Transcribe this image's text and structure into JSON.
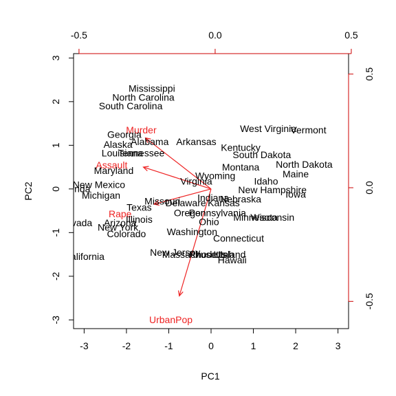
{
  "chart_data": {
    "type": "scatter",
    "subtype": "biplot",
    "xlabel": "PC1",
    "ylabel": "PC2",
    "xlim": [
      -3.25,
      3.25
    ],
    "ylim": [
      -3.2,
      3.1
    ],
    "x_ticks": [
      -3,
      -2,
      -1,
      0,
      1,
      2,
      3
    ],
    "y_ticks": [
      -3,
      -2,
      -1,
      0,
      1,
      2,
      3
    ],
    "top_axis": {
      "lim": [
        -0.52,
        0.49
      ],
      "ticks": [
        -0.5,
        0.0,
        0.5
      ],
      "tick_labels": [
        "-0.5",
        "0.0",
        "0.5"
      ],
      "color": "#cc0000"
    },
    "right_axis": {
      "lim": [
        -0.62,
        0.59
      ],
      "ticks": [
        -0.5,
        0.0,
        0.5
      ],
      "tick_labels": [
        "-0.5",
        "0.0",
        "0.5"
      ],
      "color": "#cc0000"
    },
    "arrow_color": "#ee2222",
    "label_color": "#000000",
    "observations": [
      {
        "name": "Mississippi",
        "x": -1.4,
        "y": 2.3
      },
      {
        "name": "North Carolina",
        "x": -1.6,
        "y": 2.1
      },
      {
        "name": "South Carolina",
        "x": -1.9,
        "y": 1.9
      },
      {
        "name": "Georgia",
        "x": -2.05,
        "y": 1.25
      },
      {
        "name": "Alabama",
        "x": -1.45,
        "y": 1.08
      },
      {
        "name": "Arkansas",
        "x": -0.35,
        "y": 1.08
      },
      {
        "name": "Alaska",
        "x": -2.2,
        "y": 1.02
      },
      {
        "name": "Louisiana",
        "x": -2.1,
        "y": 0.82
      },
      {
        "name": "Tennessee",
        "x": -1.65,
        "y": 0.82
      },
      {
        "name": "Kentucky",
        "x": 0.7,
        "y": 0.95
      },
      {
        "name": "West Virginia",
        "x": 1.35,
        "y": 1.38
      },
      {
        "name": "Vermont",
        "x": 2.3,
        "y": 1.35
      },
      {
        "name": "South Dakota",
        "x": 1.2,
        "y": 0.78
      },
      {
        "name": "Maryland",
        "x": -2.3,
        "y": 0.42
      },
      {
        "name": "Montana",
        "x": 0.7,
        "y": 0.5
      },
      {
        "name": "North Dakota",
        "x": 2.2,
        "y": 0.56
      },
      {
        "name": "Maine",
        "x": 2.0,
        "y": 0.34
      },
      {
        "name": "Wyoming",
        "x": 0.1,
        "y": 0.3
      },
      {
        "name": "Virginia",
        "x": -0.35,
        "y": 0.18
      },
      {
        "name": "Idaho",
        "x": 1.3,
        "y": 0.18
      },
      {
        "name": "Florida",
        "x": -3.2,
        "y": 0.0
      },
      {
        "name": "New Mexico",
        "x": -2.65,
        "y": 0.1
      },
      {
        "name": "New Hampshire",
        "x": 1.45,
        "y": -0.02
      },
      {
        "name": "Iowa",
        "x": 2.0,
        "y": -0.12
      },
      {
        "name": "Michigan",
        "x": -2.6,
        "y": -0.15
      },
      {
        "name": "Indiana",
        "x": 0.05,
        "y": -0.2
      },
      {
        "name": "Nebraska",
        "x": 0.7,
        "y": -0.23
      },
      {
        "name": "Missouri",
        "x": -1.15,
        "y": -0.28
      },
      {
        "name": "Delaware",
        "x": -0.6,
        "y": -0.32
      },
      {
        "name": "Kansas",
        "x": 0.3,
        "y": -0.32
      },
      {
        "name": "Texas",
        "x": -1.7,
        "y": -0.42
      },
      {
        "name": "Oregon",
        "x": -0.5,
        "y": -0.55
      },
      {
        "name": "Pennsylvania",
        "x": 0.15,
        "y": -0.55
      },
      {
        "name": "Minnesota",
        "x": 1.05,
        "y": -0.65
      },
      {
        "name": "Wisconsin",
        "x": 1.45,
        "y": -0.65
      },
      {
        "name": "Illinois",
        "x": -1.7,
        "y": -0.7
      },
      {
        "name": "Nevada",
        "x": -3.2,
        "y": -0.78
      },
      {
        "name": "Arizona",
        "x": -2.15,
        "y": -0.78
      },
      {
        "name": "Ohio",
        "x": -0.05,
        "y": -0.75
      },
      {
        "name": "New York",
        "x": -2.2,
        "y": -0.88
      },
      {
        "name": "Washington",
        "x": -0.45,
        "y": -0.98
      },
      {
        "name": "Colorado",
        "x": -2.0,
        "y": -1.03
      },
      {
        "name": "Connecticut",
        "x": 0.65,
        "y": -1.13
      },
      {
        "name": "New Jersey",
        "x": -0.85,
        "y": -1.45
      },
      {
        "name": "Massachusetts",
        "x": -0.4,
        "y": -1.5
      },
      {
        "name": "Rhode Island",
        "x": 0.15,
        "y": -1.5
      },
      {
        "name": "Utah",
        "x": 0.3,
        "y": -1.5
      },
      {
        "name": "Hawaii",
        "x": 0.5,
        "y": -1.63
      },
      {
        "name": "California",
        "x": -3.0,
        "y": -1.55
      }
    ],
    "variables": [
      {
        "name": "Murder",
        "x": -1.65,
        "y": 1.35,
        "arrow_x": -1.55,
        "arrow_y": 1.17
      },
      {
        "name": "Assault",
        "x": -2.35,
        "y": 0.55,
        "arrow_x": -1.6,
        "arrow_y": 0.5
      },
      {
        "name": "Rape",
        "x": -2.15,
        "y": -0.57,
        "arrow_x": -1.35,
        "arrow_y": -0.35
      },
      {
        "name": "UrbanPop",
        "x": -0.95,
        "y": -3.0,
        "arrow_x": -0.75,
        "arrow_y": -2.45
      }
    ]
  }
}
